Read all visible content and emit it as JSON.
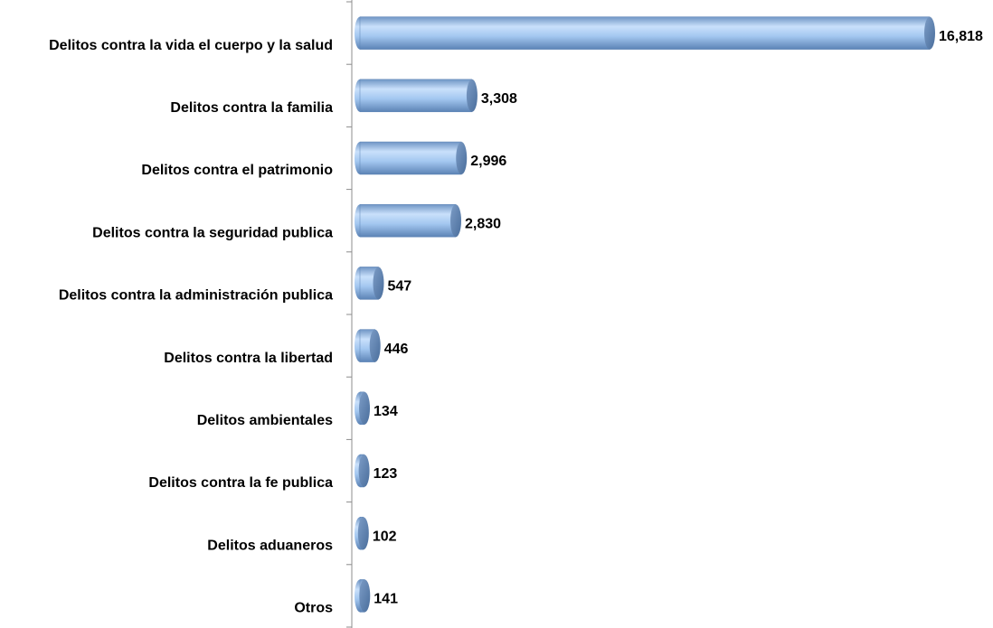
{
  "chart_data": {
    "type": "bar",
    "orientation": "horizontal",
    "categories": [
      "Delitos contra la vida el cuerpo y la salud",
      "Delitos contra la familia",
      "Delitos contra el patrimonio",
      "Delitos contra la seguridad publica",
      "Delitos contra la administración publica",
      "Delitos contra la libertad",
      "Delitos ambientales",
      "Delitos contra la fe publica",
      "Delitos aduaneros",
      "Otros"
    ],
    "values": [
      16818,
      3308,
      2996,
      2830,
      547,
      446,
      134,
      123,
      102,
      141
    ],
    "value_labels": [
      "16,818",
      "3,308",
      "2,996",
      "2,830",
      "547",
      "446",
      "134",
      "123",
      "102",
      "141"
    ],
    "color": "#9cc3ee"
  }
}
